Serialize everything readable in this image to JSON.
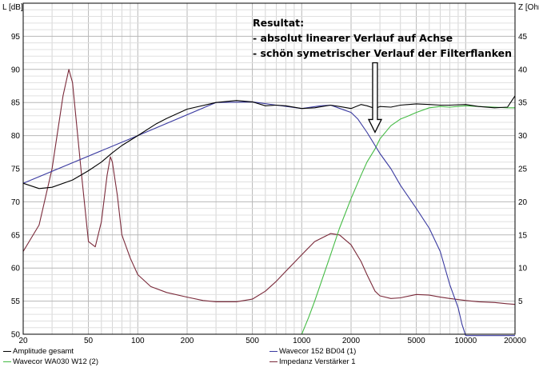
{
  "chart_data": {
    "type": "line",
    "title": "",
    "xlabel": "",
    "ylabel_left": "L [dB]",
    "ylabel_right": "Z [Ohm]",
    "x_scale": "log",
    "xlim": [
      20,
      20000
    ],
    "ylim_left": [
      50,
      100
    ],
    "ylim_right": [
      0,
      50
    ],
    "grid": true,
    "x_ticks": [
      20,
      50,
      100,
      200,
      500,
      1000,
      2000,
      5000,
      10000,
      20000
    ],
    "x_tick_labels": [
      "20",
      "50",
      "100",
      "200",
      "500",
      "1000",
      "2000",
      "5000",
      "10000",
      "20000"
    ],
    "y_left_ticks": [
      50,
      55,
      60,
      65,
      70,
      75,
      80,
      85,
      90,
      95
    ],
    "y_right_ticks": [
      5,
      10,
      15,
      20,
      25,
      30,
      35,
      40,
      45
    ],
    "legend_position": "bottom",
    "annotation": {
      "lines": [
        "Resultat:",
        "- absolut linearer Verlauf auf Achse",
        "- schön symetrischer Verlauf der Filterflanken"
      ],
      "arrow_x": 2800,
      "arrow_y_from": 91,
      "arrow_y_to": 80.5
    },
    "series": [
      {
        "name": "Amplitude gesamt",
        "axis": "left",
        "color": "#000000",
        "x": [
          20,
          25,
          30,
          40,
          50,
          60,
          70,
          80,
          100,
          130,
          150,
          200,
          300,
          400,
          500,
          600,
          700,
          800,
          1000,
          1200,
          1500,
          1700,
          2000,
          2300,
          2500,
          2800,
          3000,
          3500,
          4000,
          5000,
          6000,
          7000,
          8000,
          10000,
          12000,
          15000,
          18000,
          20000
        ],
        "y": [
          72.8,
          72,
          72.2,
          73.3,
          74.7,
          76,
          77.4,
          78.5,
          80,
          81.8,
          82.6,
          84,
          85,
          85.3,
          85.1,
          84.5,
          84.6,
          84.5,
          84.1,
          84.2,
          84.6,
          84.4,
          84.1,
          84.7,
          84.5,
          84.1,
          84.4,
          84.3,
          84.6,
          84.8,
          84.7,
          84.6,
          84.6,
          84.7,
          84.4,
          84.2,
          84.3,
          86
        ]
      },
      {
        "name": "Wavecor 152 BD04 (1)",
        "axis": "left",
        "color": "#3a3aa0",
        "x": [
          20,
          100,
          300,
          500,
          700,
          1000,
          1300,
          1500,
          1800,
          2000,
          2200,
          2500,
          2800,
          3000,
          3500,
          4000,
          5000,
          6000,
          7000,
          8000,
          9000,
          9500,
          10000,
          10500,
          11000,
          12000,
          15000,
          18000,
          20000
        ],
        "y": [
          72.8,
          80,
          85,
          85.1,
          84.6,
          84.1,
          84.5,
          84.6,
          83.9,
          83.5,
          82.5,
          80.5,
          78.5,
          77.3,
          75,
          72.5,
          69,
          66,
          62.5,
          57.5,
          54,
          51.5,
          49.8,
          49.8,
          49.8,
          49.8,
          49.8,
          49.8,
          49.8
        ]
      },
      {
        "name": "Wavecor WA030 W12 (2)",
        "axis": "left",
        "color": "#44bb44",
        "x": [
          1000,
          1100,
          1200,
          1300,
          1500,
          1700,
          2000,
          2300,
          2500,
          2800,
          3000,
          3500,
          4000,
          4500,
          5000,
          6000,
          7000,
          8000,
          10000,
          12000,
          15000,
          18000,
          20000
        ],
        "y": [
          50,
          52.5,
          55,
          57.5,
          62,
          66,
          70.5,
          74,
          76,
          78,
          79.5,
          81.5,
          82.5,
          83,
          83.5,
          84.2,
          84.4,
          84.3,
          84.5,
          84.4,
          84.3,
          84.2,
          84.2
        ]
      },
      {
        "name": "Impedanz Verstärker 1",
        "axis": "right",
        "color": "#7a2a3a",
        "x": [
          20,
          25,
          30,
          35,
          38,
          40,
          45,
          50,
          55,
          60,
          65,
          68,
          70,
          75,
          80,
          90,
          100,
          120,
          150,
          200,
          250,
          300,
          400,
          500,
          600,
          700,
          800,
          1000,
          1200,
          1500,
          1700,
          2000,
          2300,
          2500,
          2800,
          3000,
          3500,
          4000,
          5000,
          6000,
          7000,
          8000,
          10000,
          12000,
          15000,
          18000,
          20000
        ],
        "y": [
          12.5,
          16.5,
          25,
          36,
          40,
          38,
          25,
          14,
          13.2,
          17,
          24,
          26.8,
          26,
          21,
          15,
          11.5,
          9,
          7.2,
          6.3,
          5.6,
          5.1,
          4.9,
          4.9,
          5.3,
          6.5,
          8,
          9.5,
          12,
          14,
          15.2,
          15,
          13.5,
          11,
          9,
          6.5,
          5.8,
          5.4,
          5.5,
          6,
          5.9,
          5.6,
          5.4,
          5.1,
          4.9,
          4.8,
          4.6,
          4.5
        ]
      }
    ]
  }
}
